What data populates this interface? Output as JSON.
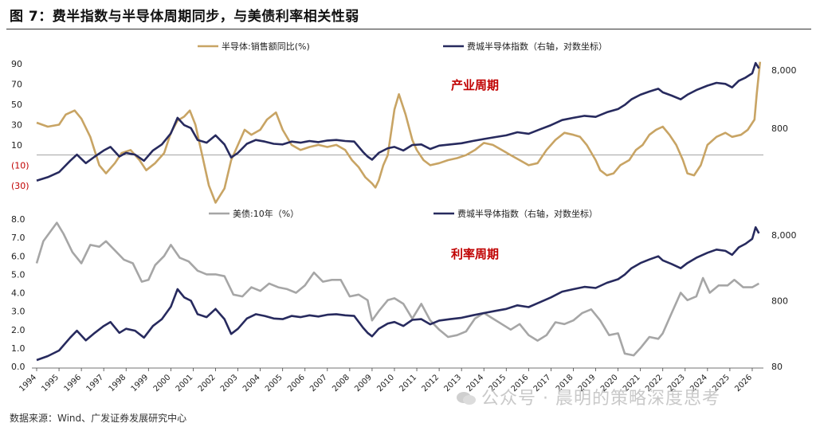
{
  "title": "图 7：费半指数与半导体周期同步，与美债利率相关性弱",
  "source": "数据来源：Wind、广发证券发展研究中心",
  "watermark": "公众号 · 晨明的策略深度思考",
  "colors": {
    "semi_sales": "#c8a464",
    "treasury": "#a6a6a6",
    "sox": "#272a5e",
    "annotation": "#c00000",
    "axis": "#333333"
  },
  "chart_data": [
    {
      "type": "line",
      "annotation": "产业周期",
      "x_range": [
        1994,
        2026.5
      ],
      "x_ticks": [
        "1994",
        "1995",
        "1996",
        "1997",
        "1998",
        "1999",
        "2000",
        "2001",
        "2002",
        "2003",
        "2004",
        "2005",
        "2006",
        "2007",
        "2008",
        "2009",
        "2010",
        "2011",
        "2012",
        "2013",
        "2014",
        "2015",
        "2016",
        "2017",
        "2018",
        "2019",
        "2020",
        "2021",
        "2022",
        "2023",
        "2024",
        "2025",
        "2026"
      ],
      "left_axis": {
        "ticks": [
          "90",
          "70",
          "50",
          "30",
          "10",
          "(10)",
          "(30)"
        ],
        "tick_values": [
          90,
          70,
          50,
          30,
          10,
          -10,
          -30
        ],
        "range": [
          -38,
          98
        ],
        "negative_color": "#c00000"
      },
      "right_axis": {
        "scale": "log",
        "ticks": [
          "8,000",
          "800"
        ],
        "tick_values": [
          8000,
          800
        ],
        "range": [
          60,
          14000
        ]
      },
      "series": [
        {
          "name": "半导体:销售额同比(%)",
          "axis": "left",
          "x": [
            1994,
            1994.5,
            1995,
            1995.3,
            1995.7,
            1996,
            1996.4,
            1996.8,
            1997.1,
            1997.5,
            1997.8,
            1998.2,
            1998.6,
            1998.9,
            1999.3,
            1999.7,
            2000,
            2000.3,
            2000.6,
            2000.85,
            2001.1,
            2001.4,
            2001.7,
            2002,
            2002.4,
            2002.7,
            2003,
            2003.3,
            2003.6,
            2004,
            2004.3,
            2004.7,
            2005,
            2005.4,
            2005.8,
            2006.2,
            2006.6,
            2007,
            2007.4,
            2007.8,
            2008.1,
            2008.4,
            2008.7,
            2009,
            2009.15,
            2009.3,
            2009.5,
            2009.7,
            2010,
            2010.2,
            2010.5,
            2010.8,
            2011,
            2011.3,
            2011.6,
            2012,
            2012.4,
            2012.8,
            2013.2,
            2013.6,
            2014,
            2014.4,
            2014.8,
            2015.2,
            2015.6,
            2016,
            2016.4,
            2016.8,
            2017.2,
            2017.6,
            2018,
            2018.3,
            2018.6,
            2019,
            2019.2,
            2019.5,
            2019.8,
            2020.1,
            2020.5,
            2020.8,
            2021.1,
            2021.4,
            2021.7,
            2022,
            2022.3,
            2022.6,
            2022.9,
            2023.1,
            2023.4,
            2023.7,
            2024,
            2024.4,
            2024.8,
            2025.1,
            2025.5,
            2025.8,
            2026.1,
            2026.2,
            2026.35
          ],
          "values": [
            32,
            28,
            30,
            40,
            44,
            36,
            18,
            -10,
            -18,
            -8,
            2,
            5,
            -5,
            -15,
            -8,
            2,
            22,
            34,
            38,
            44,
            30,
            0,
            -30,
            -47,
            -33,
            -5,
            10,
            25,
            20,
            25,
            35,
            42,
            25,
            10,
            5,
            8,
            10,
            8,
            10,
            5,
            -5,
            -12,
            -22,
            -28,
            -32,
            -25,
            -10,
            0,
            45,
            60,
            40,
            15,
            5,
            -5,
            -10,
            -8,
            -5,
            -3,
            0,
            5,
            12,
            10,
            5,
            0,
            -5,
            -10,
            -8,
            5,
            15,
            22,
            20,
            18,
            10,
            -5,
            -15,
            -20,
            -18,
            -10,
            -5,
            5,
            10,
            20,
            25,
            28,
            20,
            10,
            -5,
            -18,
            -20,
            -10,
            10,
            18,
            22,
            18,
            20,
            25,
            35,
            60,
            92
          ]
        },
        {
          "name": "费城半导体指数（右轴，对数坐标）",
          "axis": "right",
          "x": [
            1994,
            1994.5,
            1995,
            1995.5,
            1995.8,
            1996.2,
            1996.6,
            1997,
            1997.3,
            1997.7,
            1998,
            1998.4,
            1998.8,
            1999.2,
            1999.6,
            2000,
            2000.3,
            2000.6,
            2000.9,
            2001.2,
            2001.6,
            2002,
            2002.4,
            2002.7,
            2003,
            2003.4,
            2003.8,
            2004.2,
            2004.6,
            2005,
            2005.4,
            2005.8,
            2006.2,
            2006.6,
            2007,
            2007.4,
            2007.8,
            2008.2,
            2008.6,
            2008.8,
            2009,
            2009.3,
            2009.7,
            2010,
            2010.4,
            2010.8,
            2011.2,
            2011.6,
            2012,
            2012.5,
            2013,
            2013.5,
            2014,
            2014.5,
            2015,
            2015.5,
            2016,
            2016.5,
            2017,
            2017.5,
            2018,
            2018.5,
            2019,
            2019.5,
            2020,
            2020.3,
            2020.6,
            2021,
            2021.4,
            2021.8,
            2022,
            2022.4,
            2022.8,
            2023.1,
            2023.5,
            2024,
            2024.4,
            2024.8,
            2025.1,
            2025.4,
            2025.7,
            2026,
            2026.15,
            2026.3
          ],
          "values": [
            100,
            115,
            140,
            220,
            280,
            200,
            260,
            330,
            380,
            260,
            300,
            280,
            220,
            330,
            420,
            650,
            1200,
            900,
            800,
            500,
            450,
            600,
            420,
            250,
            300,
            430,
            500,
            470,
            430,
            420,
            470,
            450,
            480,
            460,
            490,
            500,
            480,
            470,
            310,
            260,
            230,
            300,
            360,
            380,
            330,
            410,
            420,
            350,
            400,
            420,
            440,
            480,
            520,
            560,
            600,
            680,
            640,
            760,
            900,
            1100,
            1200,
            1300,
            1250,
            1500,
            1700,
            2000,
            2500,
            3000,
            3400,
            3800,
            3300,
            2900,
            2500,
            3000,
            3600,
            4300,
            4800,
            4600,
            4000,
            5200,
            5900,
            7000,
            10500,
            8500
          ]
        }
      ]
    },
    {
      "type": "line",
      "annotation": "利率周期",
      "x_range": [
        1994,
        2026.5
      ],
      "x_ticks": [
        "1994",
        "1995",
        "1996",
        "1997",
        "1998",
        "1999",
        "2000",
        "2001",
        "2002",
        "2003",
        "2004",
        "2005",
        "2006",
        "2007",
        "2008",
        "2009",
        "2010",
        "2011",
        "2012",
        "2013",
        "2014",
        "2015",
        "2016",
        "2017",
        "2018",
        "2019",
        "2020",
        "2021",
        "2022",
        "2023",
        "2024",
        "2025",
        "2026"
      ],
      "left_axis": {
        "ticks": [
          "8.0",
          "7.0",
          "6.0",
          "5.0",
          "4.0",
          "3.0",
          "2.0",
          "1.0",
          "0.0"
        ],
        "tick_values": [
          8,
          7,
          6,
          5,
          4,
          3,
          2,
          1,
          0
        ],
        "range": [
          0,
          8
        ]
      },
      "right_axis": {
        "scale": "log",
        "ticks": [
          "8,000",
          "800",
          "80"
        ],
        "tick_values": [
          8000,
          800,
          80
        ],
        "range": [
          80,
          14000
        ]
      },
      "series": [
        {
          "name": "美债:10年（%）",
          "axis": "left",
          "x": [
            1994,
            1994.3,
            1994.6,
            1994.9,
            1995.2,
            1995.6,
            1996,
            1996.4,
            1996.8,
            1997.1,
            1997.5,
            1997.9,
            1998.3,
            1998.7,
            1999,
            1999.3,
            1999.7,
            2000,
            2000.4,
            2000.8,
            2001.2,
            2001.6,
            2002,
            2002.4,
            2002.8,
            2003.2,
            2003.6,
            2004,
            2004.4,
            2004.8,
            2005.2,
            2005.6,
            2006,
            2006.4,
            2006.8,
            2007.2,
            2007.6,
            2008,
            2008.4,
            2008.8,
            2009,
            2009.3,
            2009.7,
            2010,
            2010.4,
            2010.8,
            2011.2,
            2011.6,
            2012,
            2012.4,
            2012.8,
            2013.2,
            2013.6,
            2014,
            2014.4,
            2014.8,
            2015.2,
            2015.6,
            2016,
            2016.4,
            2016.8,
            2017.2,
            2017.6,
            2018,
            2018.4,
            2018.8,
            2019.2,
            2019.6,
            2020,
            2020.3,
            2020.7,
            2021,
            2021.4,
            2021.8,
            2022,
            2022.4,
            2022.8,
            2023.1,
            2023.5,
            2023.8,
            2024.1,
            2024.5,
            2024.9,
            2025.2,
            2025.6,
            2026,
            2026.3
          ],
          "values": [
            5.6,
            6.8,
            7.3,
            7.8,
            7.2,
            6.2,
            5.6,
            6.6,
            6.5,
            6.8,
            6.3,
            5.8,
            5.6,
            4.6,
            4.7,
            5.5,
            6.0,
            6.6,
            5.9,
            5.7,
            5.2,
            5.0,
            5.0,
            4.9,
            3.9,
            3.8,
            4.3,
            4.1,
            4.5,
            4.3,
            4.2,
            4.0,
            4.4,
            5.1,
            4.6,
            4.7,
            4.7,
            3.8,
            3.9,
            3.6,
            2.5,
            3.0,
            3.6,
            3.7,
            3.4,
            2.6,
            3.4,
            2.5,
            2.0,
            1.6,
            1.7,
            1.9,
            2.6,
            2.9,
            2.6,
            2.3,
            2.0,
            2.3,
            1.7,
            1.4,
            1.7,
            2.4,
            2.3,
            2.5,
            2.9,
            3.1,
            2.5,
            1.7,
            1.8,
            0.7,
            0.6,
            1.0,
            1.6,
            1.5,
            1.8,
            2.9,
            4.0,
            3.6,
            3.8,
            4.8,
            4.0,
            4.4,
            4.4,
            4.7,
            4.3,
            4.3,
            4.5
          ]
        },
        {
          "name": "费城半导体指数（右轴，对数坐标）",
          "axis": "right",
          "x": [
            1994,
            1994.5,
            1995,
            1995.5,
            1995.8,
            1996.2,
            1996.6,
            1997,
            1997.3,
            1997.7,
            1998,
            1998.4,
            1998.8,
            1999.2,
            1999.6,
            2000,
            2000.3,
            2000.6,
            2000.9,
            2001.2,
            2001.6,
            2002,
            2002.4,
            2002.7,
            2003,
            2003.4,
            2003.8,
            2004.2,
            2004.6,
            2005,
            2005.4,
            2005.8,
            2006.2,
            2006.6,
            2007,
            2007.4,
            2007.8,
            2008.2,
            2008.6,
            2008.8,
            2009,
            2009.3,
            2009.7,
            2010,
            2010.4,
            2010.8,
            2011.2,
            2011.6,
            2012,
            2012.5,
            2013,
            2013.5,
            2014,
            2014.5,
            2015,
            2015.5,
            2016,
            2016.5,
            2017,
            2017.5,
            2018,
            2018.5,
            2019,
            2019.5,
            2020,
            2020.3,
            2020.6,
            2021,
            2021.4,
            2021.8,
            2022,
            2022.4,
            2022.8,
            2023.1,
            2023.5,
            2024,
            2024.4,
            2024.8,
            2025.1,
            2025.4,
            2025.7,
            2026,
            2026.15,
            2026.3
          ],
          "values": [
            100,
            115,
            140,
            220,
            280,
            200,
            260,
            330,
            380,
            260,
            300,
            280,
            220,
            330,
            420,
            650,
            1200,
            900,
            800,
            500,
            450,
            600,
            420,
            250,
            300,
            430,
            500,
            470,
            430,
            420,
            470,
            450,
            480,
            460,
            490,
            500,
            480,
            470,
            310,
            260,
            230,
            300,
            360,
            380,
            330,
            410,
            420,
            350,
            400,
            420,
            440,
            480,
            520,
            560,
            600,
            680,
            640,
            760,
            900,
            1100,
            1200,
            1300,
            1250,
            1500,
            1700,
            2000,
            2500,
            3000,
            3400,
            3800,
            3300,
            2900,
            2500,
            3000,
            3600,
            4300,
            4800,
            4600,
            4000,
            5200,
            5900,
            7000,
            10500,
            8500
          ]
        }
      ]
    }
  ]
}
